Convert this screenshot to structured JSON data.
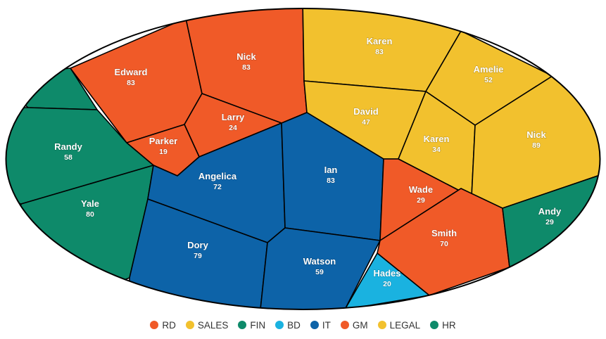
{
  "chart_data": {
    "type": "voronoi-treemap",
    "title": "",
    "groups": [
      {
        "name": "RD",
        "color": "#f05a28"
      },
      {
        "name": "SALES",
        "color": "#f2c12e"
      },
      {
        "name": "FIN",
        "color": "#0e8a6a"
      },
      {
        "name": "BD",
        "color": "#1ab2e0"
      },
      {
        "name": "IT",
        "color": "#0d63a8"
      },
      {
        "name": "GM",
        "color": "#f05a28"
      },
      {
        "name": "LEGAL",
        "color": "#f2c12e"
      },
      {
        "name": "HR",
        "color": "#0e8a6a"
      }
    ],
    "cells": [
      {
        "name": "Edward",
        "value": 83,
        "group": "RD"
      },
      {
        "name": "Nick",
        "value": 83,
        "group": "RD"
      },
      {
        "name": "Larry",
        "value": 24,
        "group": "RD"
      },
      {
        "name": "Parker",
        "value": 19,
        "group": "RD"
      },
      {
        "name": "Karen",
        "value": 83,
        "group": "SALES"
      },
      {
        "name": "Amelie",
        "value": 52,
        "group": "SALES"
      },
      {
        "name": "David",
        "value": 47,
        "group": "SALES"
      },
      {
        "name": "Karen",
        "value": 34,
        "group": "SALES"
      },
      {
        "name": "Nick",
        "value": 89,
        "group": "SALES"
      },
      {
        "name": "",
        "value": null,
        "group": "FIN"
      },
      {
        "name": "Randy",
        "value": 58,
        "group": "FIN"
      },
      {
        "name": "Yale",
        "value": 80,
        "group": "FIN"
      },
      {
        "name": "Angelica",
        "value": 72,
        "group": "IT"
      },
      {
        "name": "Ian",
        "value": 83,
        "group": "IT"
      },
      {
        "name": "Dory",
        "value": 79,
        "group": "IT"
      },
      {
        "name": "Watson",
        "value": 59,
        "group": "IT"
      },
      {
        "name": "Wade",
        "value": 29,
        "group": "GM"
      },
      {
        "name": "Smith",
        "value": 70,
        "group": "GM"
      },
      {
        "name": "Andy",
        "value": 29,
        "group": "HR"
      },
      {
        "name": "Hades",
        "value": 20,
        "group": "BD"
      }
    ]
  }
}
